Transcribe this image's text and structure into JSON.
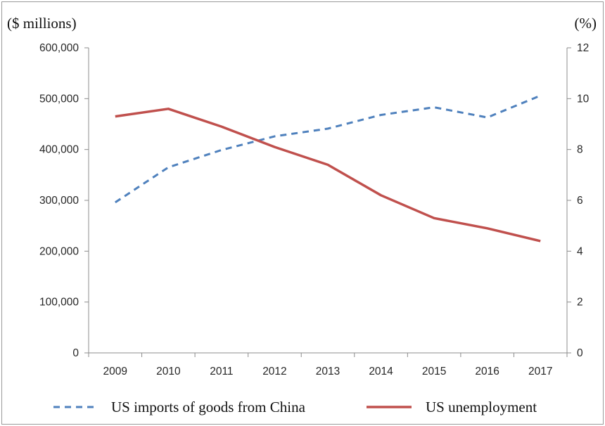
{
  "chart_data": {
    "type": "line",
    "categories": [
      "2009",
      "2010",
      "2011",
      "2012",
      "2013",
      "2014",
      "2015",
      "2016",
      "2017"
    ],
    "left_axis": {
      "label": "($ millions)",
      "ylim": [
        0,
        600000
      ],
      "ticks": [
        0,
        100000,
        200000,
        300000,
        400000,
        500000,
        600000
      ],
      "tick_labels": [
        "0",
        "100,000",
        "200,000",
        "300,000",
        "400,000",
        "500,000",
        "600,000"
      ]
    },
    "right_axis": {
      "label": "(%)",
      "ylim": [
        0,
        12
      ],
      "ticks": [
        0,
        2,
        4,
        6,
        8,
        10,
        12
      ],
      "tick_labels": [
        "0",
        "2",
        "4",
        "6",
        "8",
        "10",
        "12"
      ]
    },
    "series": [
      {
        "name": "US imports of goods from China",
        "axis": "left",
        "style": "dashed",
        "color": "#4f81bd",
        "values": [
          296000,
          365000,
          399000,
          426000,
          441000,
          468000,
          483000,
          463000,
          506000
        ]
      },
      {
        "name": "US unemployment",
        "axis": "right",
        "style": "solid",
        "color": "#c0504d",
        "values": [
          9.3,
          9.6,
          8.9,
          8.1,
          7.4,
          6.2,
          5.3,
          4.9,
          4.4
        ]
      }
    ],
    "grid": false,
    "legend_position": "bottom"
  }
}
